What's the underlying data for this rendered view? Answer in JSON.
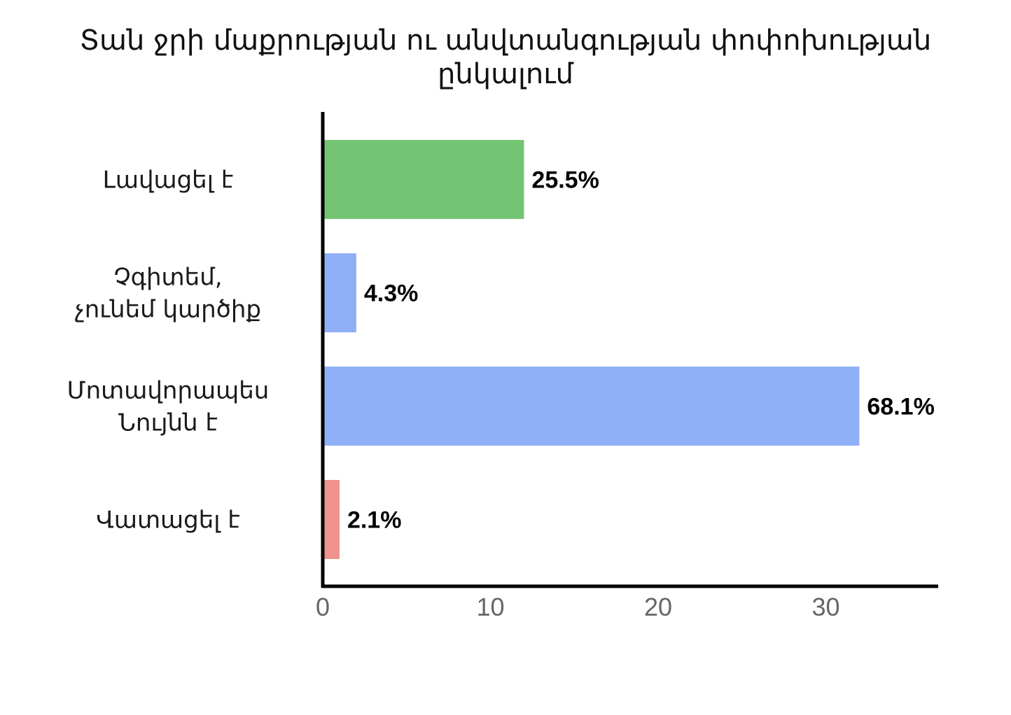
{
  "chart_data": {
    "type": "bar",
    "orientation": "horizontal",
    "title_lines": [
      "Տան ջրի մաքրության ու անվտանգության փոփոխության",
      "ընկալում"
    ],
    "categories": [
      [
        "Լավացել է"
      ],
      [
        "Չգիտեմ,",
        "չունեմ կարծիք"
      ],
      [
        "Մոտավորապես",
        "Նույնն է"
      ],
      [
        "Վատացել է"
      ]
    ],
    "values": [
      12,
      2,
      32,
      1
    ],
    "value_labels": [
      "25.5%",
      "4.3%",
      "68.1%",
      "2.1%"
    ],
    "bar_colors": [
      "#73c573",
      "#8fb0f7",
      "#8fb0f7",
      "#ee938d"
    ],
    "xticks": [
      0,
      10,
      20,
      30
    ],
    "xlim": [
      0,
      36.7
    ],
    "xlabel": "",
    "ylabel": "",
    "grid": false,
    "legend": "none"
  }
}
